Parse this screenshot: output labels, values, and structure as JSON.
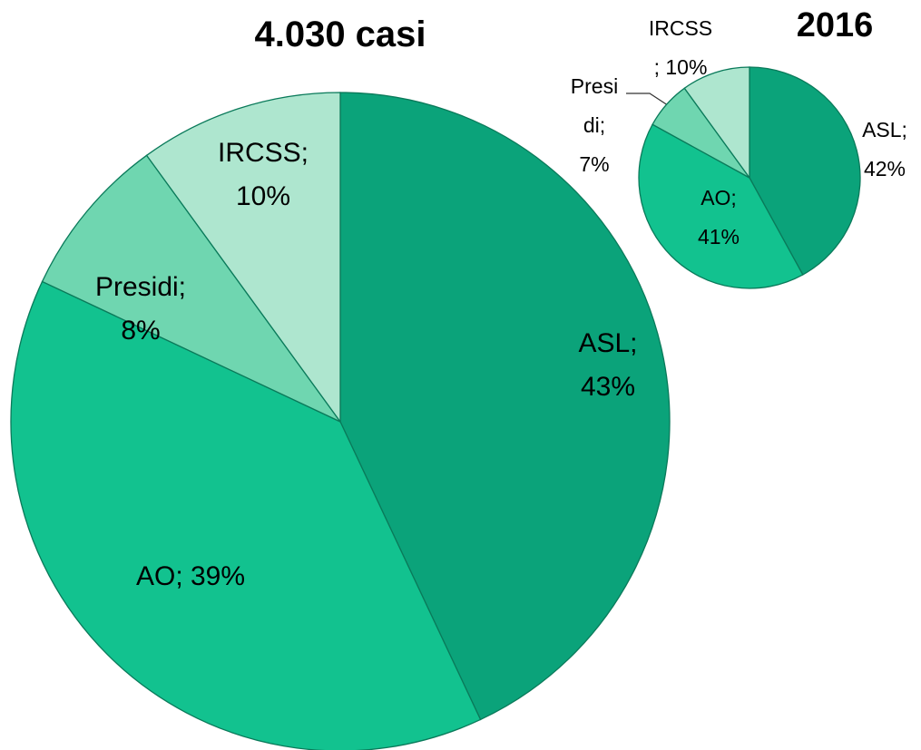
{
  "chart_data": [
    {
      "type": "pie",
      "title": "4.030 casi",
      "values": [
        43,
        39,
        8,
        10
      ],
      "value_labels": [
        "ASL;\n43%",
        "AO; 39%",
        "Presidi;\n8%",
        "IRCSS;\n10%"
      ],
      "colors": [
        "#0ba37a",
        "#12c28f",
        "#6fd6b0",
        "#aee6cf"
      ]
    },
    {
      "type": "pie",
      "title": "2016",
      "values": [
        42,
        41,
        7,
        10
      ],
      "value_labels": [
        "ASL;\n42%",
        "AO;\n41%",
        "Presi\ndi;\n7%",
        "IRCSS\n; 10%"
      ],
      "colors": [
        "#0ba37a",
        "#12c28f",
        "#6fd6b0",
        "#aee6cf"
      ]
    }
  ]
}
